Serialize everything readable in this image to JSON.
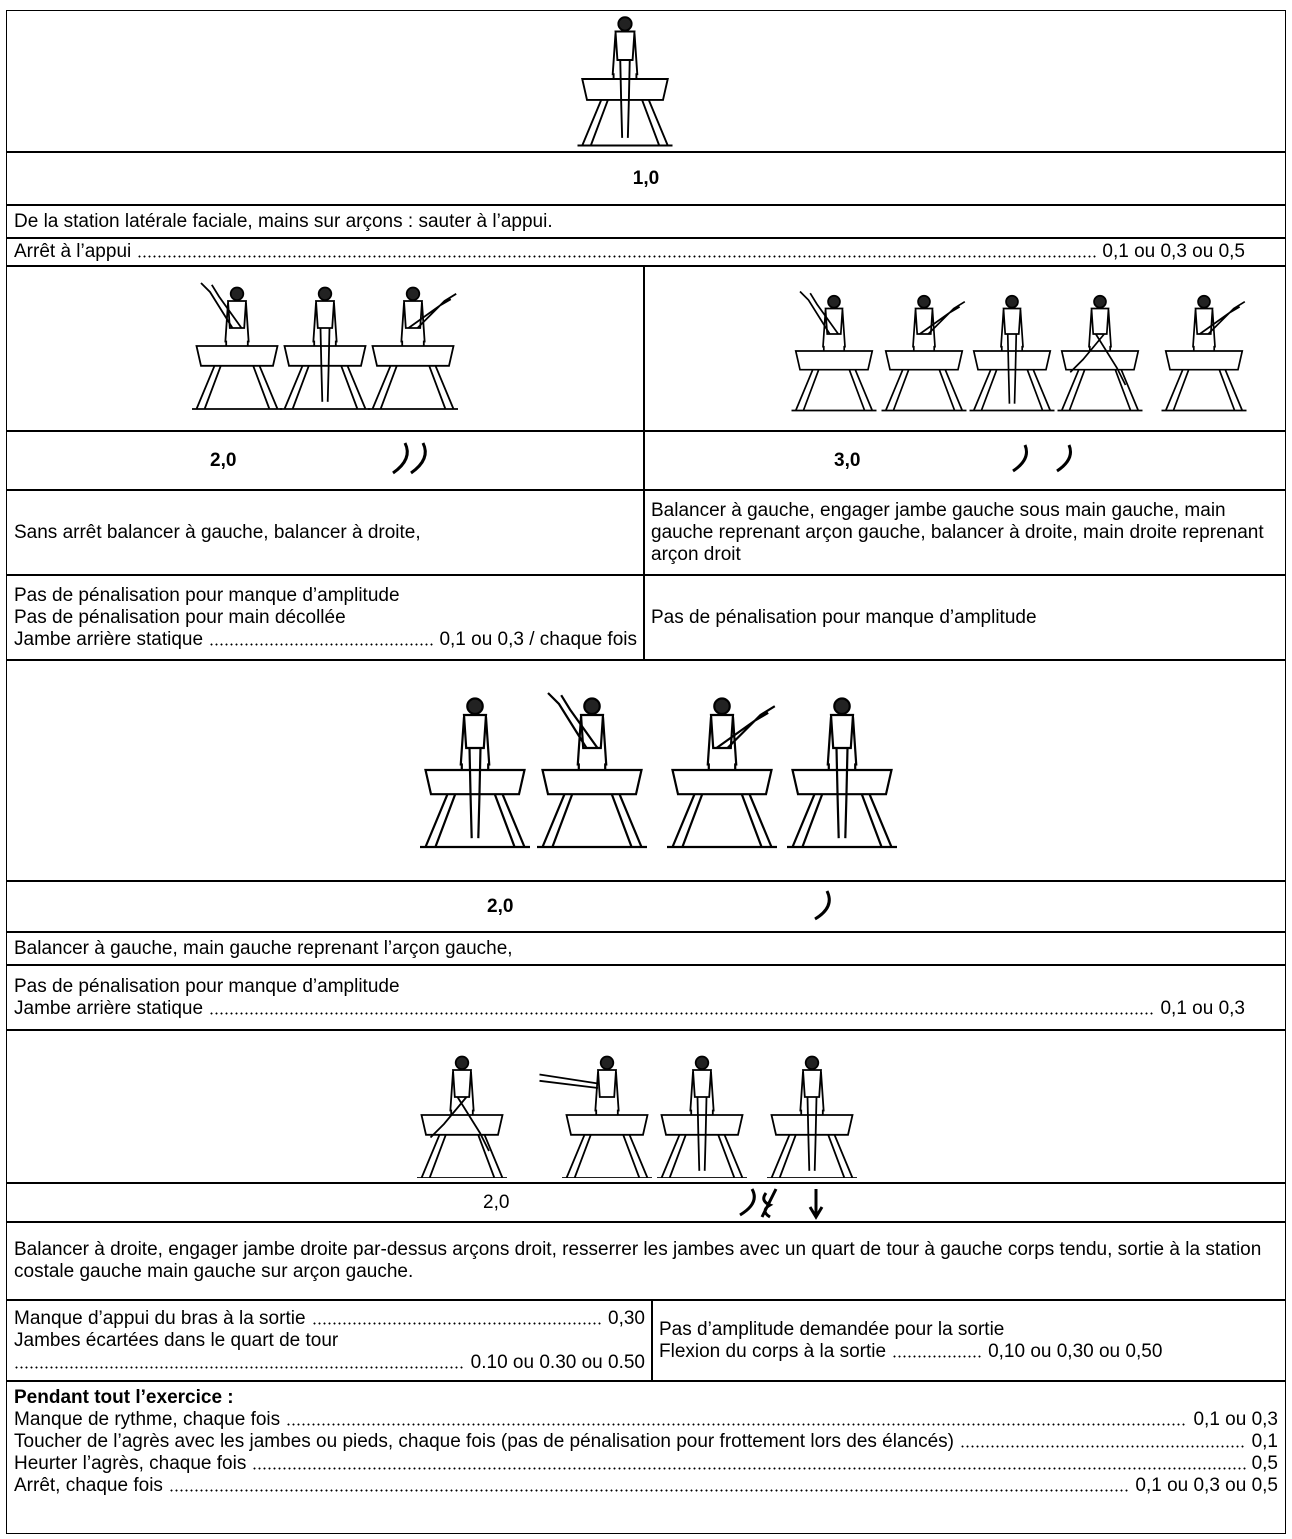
{
  "sections": [
    {
      "value": "1,0",
      "description": "De la station latérale faciale, mains sur arçons : sauter à l’appui.",
      "penalties": [
        {
          "text": "Arrêt à l’appui",
          "value": "0,1 ou 0,3 ou 0,5"
        }
      ]
    },
    {
      "columns": [
        {
          "value": "2,0",
          "description": "Sans arrêt balancer à gauche, balancer à droite,",
          "penalties": [
            {
              "text": "Pas de pénalisation pour manque d’amplitude"
            },
            {
              "text": "Pas de pénalisation pour main décollée"
            },
            {
              "text": "Jambe arrière statique",
              "value": "0,1 ou 0,3 / chaque fois"
            }
          ]
        },
        {
          "value": "3,0",
          "description": "Balancer à gauche, engager jambe gauche sous main gauche, main gauche reprenant arçon gauche, balancer à droite, main droite reprenant arçon droit",
          "penalties": [
            {
              "text": "Pas de pénalisation pour manque d’amplitude"
            }
          ]
        }
      ]
    },
    {
      "value": "2,0",
      "description": "Balancer à gauche, main gauche reprenant l’arçon gauche,",
      "penalties": [
        {
          "text": "Pas de pénalisation pour manque d’amplitude"
        },
        {
          "text": "Jambe arrière statique",
          "value": "0,1 ou 0,3"
        }
      ]
    },
    {
      "value": "2,0",
      "description": "Balancer à droite, engager jambe droite par-dessus arçons droit, resserrer les jambes avec un quart de tour à gauche corps tendu, sortie à la station costale gauche main gauche sur arçon gauche.",
      "columns": [
        {
          "penalties": [
            {
              "text": "Manque d’appui du bras à la sortie",
              "value": "0,30"
            },
            {
              "text": "Jambes écartées dans le quart de tour",
              "value": "0.10 ou 0.30 ou 0.50"
            }
          ]
        },
        {
          "penalties": [
            {
              "text": "Pas d’amplitude demandée pour la sortie"
            },
            {
              "text": "Flexion du corps à la sortie",
              "value": "0,10 ou 0,30 ou 0,50"
            }
          ]
        }
      ]
    }
  ],
  "general": {
    "title": "Pendant tout l’exercice :",
    "items": [
      {
        "text": "Manque de rythme, chaque fois",
        "value": "0,1 ou 0,3"
      },
      {
        "text": "Toucher de l’agrès avec les jambes ou pieds, chaque fois (pas de pénalisation pour frottement lors des élancés)",
        "value": "0,1"
      },
      {
        "text": "Heurter l’agrès, chaque fois",
        "value": "0,5"
      },
      {
        "text": "Arrêt, chaque fois",
        "value": "0,1 ou 0,3 ou 0,5"
      }
    ]
  }
}
